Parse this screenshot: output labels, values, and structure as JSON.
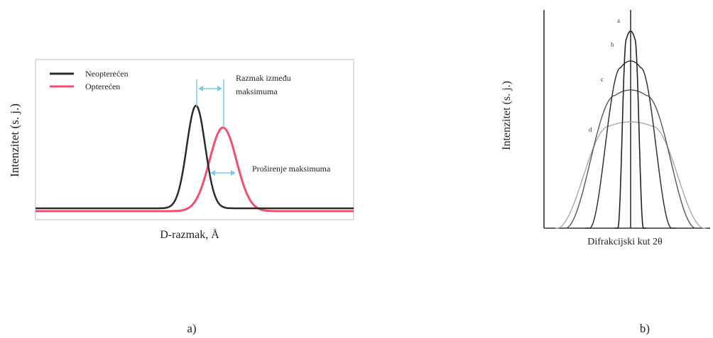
{
  "panel_a": {
    "legend": [
      {
        "label": "Neopterećen",
        "color": "#2b2b2b"
      },
      {
        "label": "Opterećen",
        "color": "#f0506e"
      }
    ],
    "annotation_shift_line1": "Razmak između",
    "annotation_shift_line2": "maksimuma",
    "annotation_broadening": "Proširenje maksimuma",
    "ylabel": "Intenzitet (s. j.)",
    "xlabel": "D-razmak, Å",
    "caption": "a)"
  },
  "panel_b": {
    "curve_labels": [
      "a",
      "b",
      "c",
      "d"
    ],
    "ylabel": "Intenzitet (s. j.)",
    "xlabel": "Difrakcijski kut 2θ",
    "caption": "b)"
  },
  "colors": {
    "unloaded": "#2b2b2b",
    "loaded": "#f0506e",
    "arrow": "#7ec8ea",
    "axis": "#333333"
  }
}
